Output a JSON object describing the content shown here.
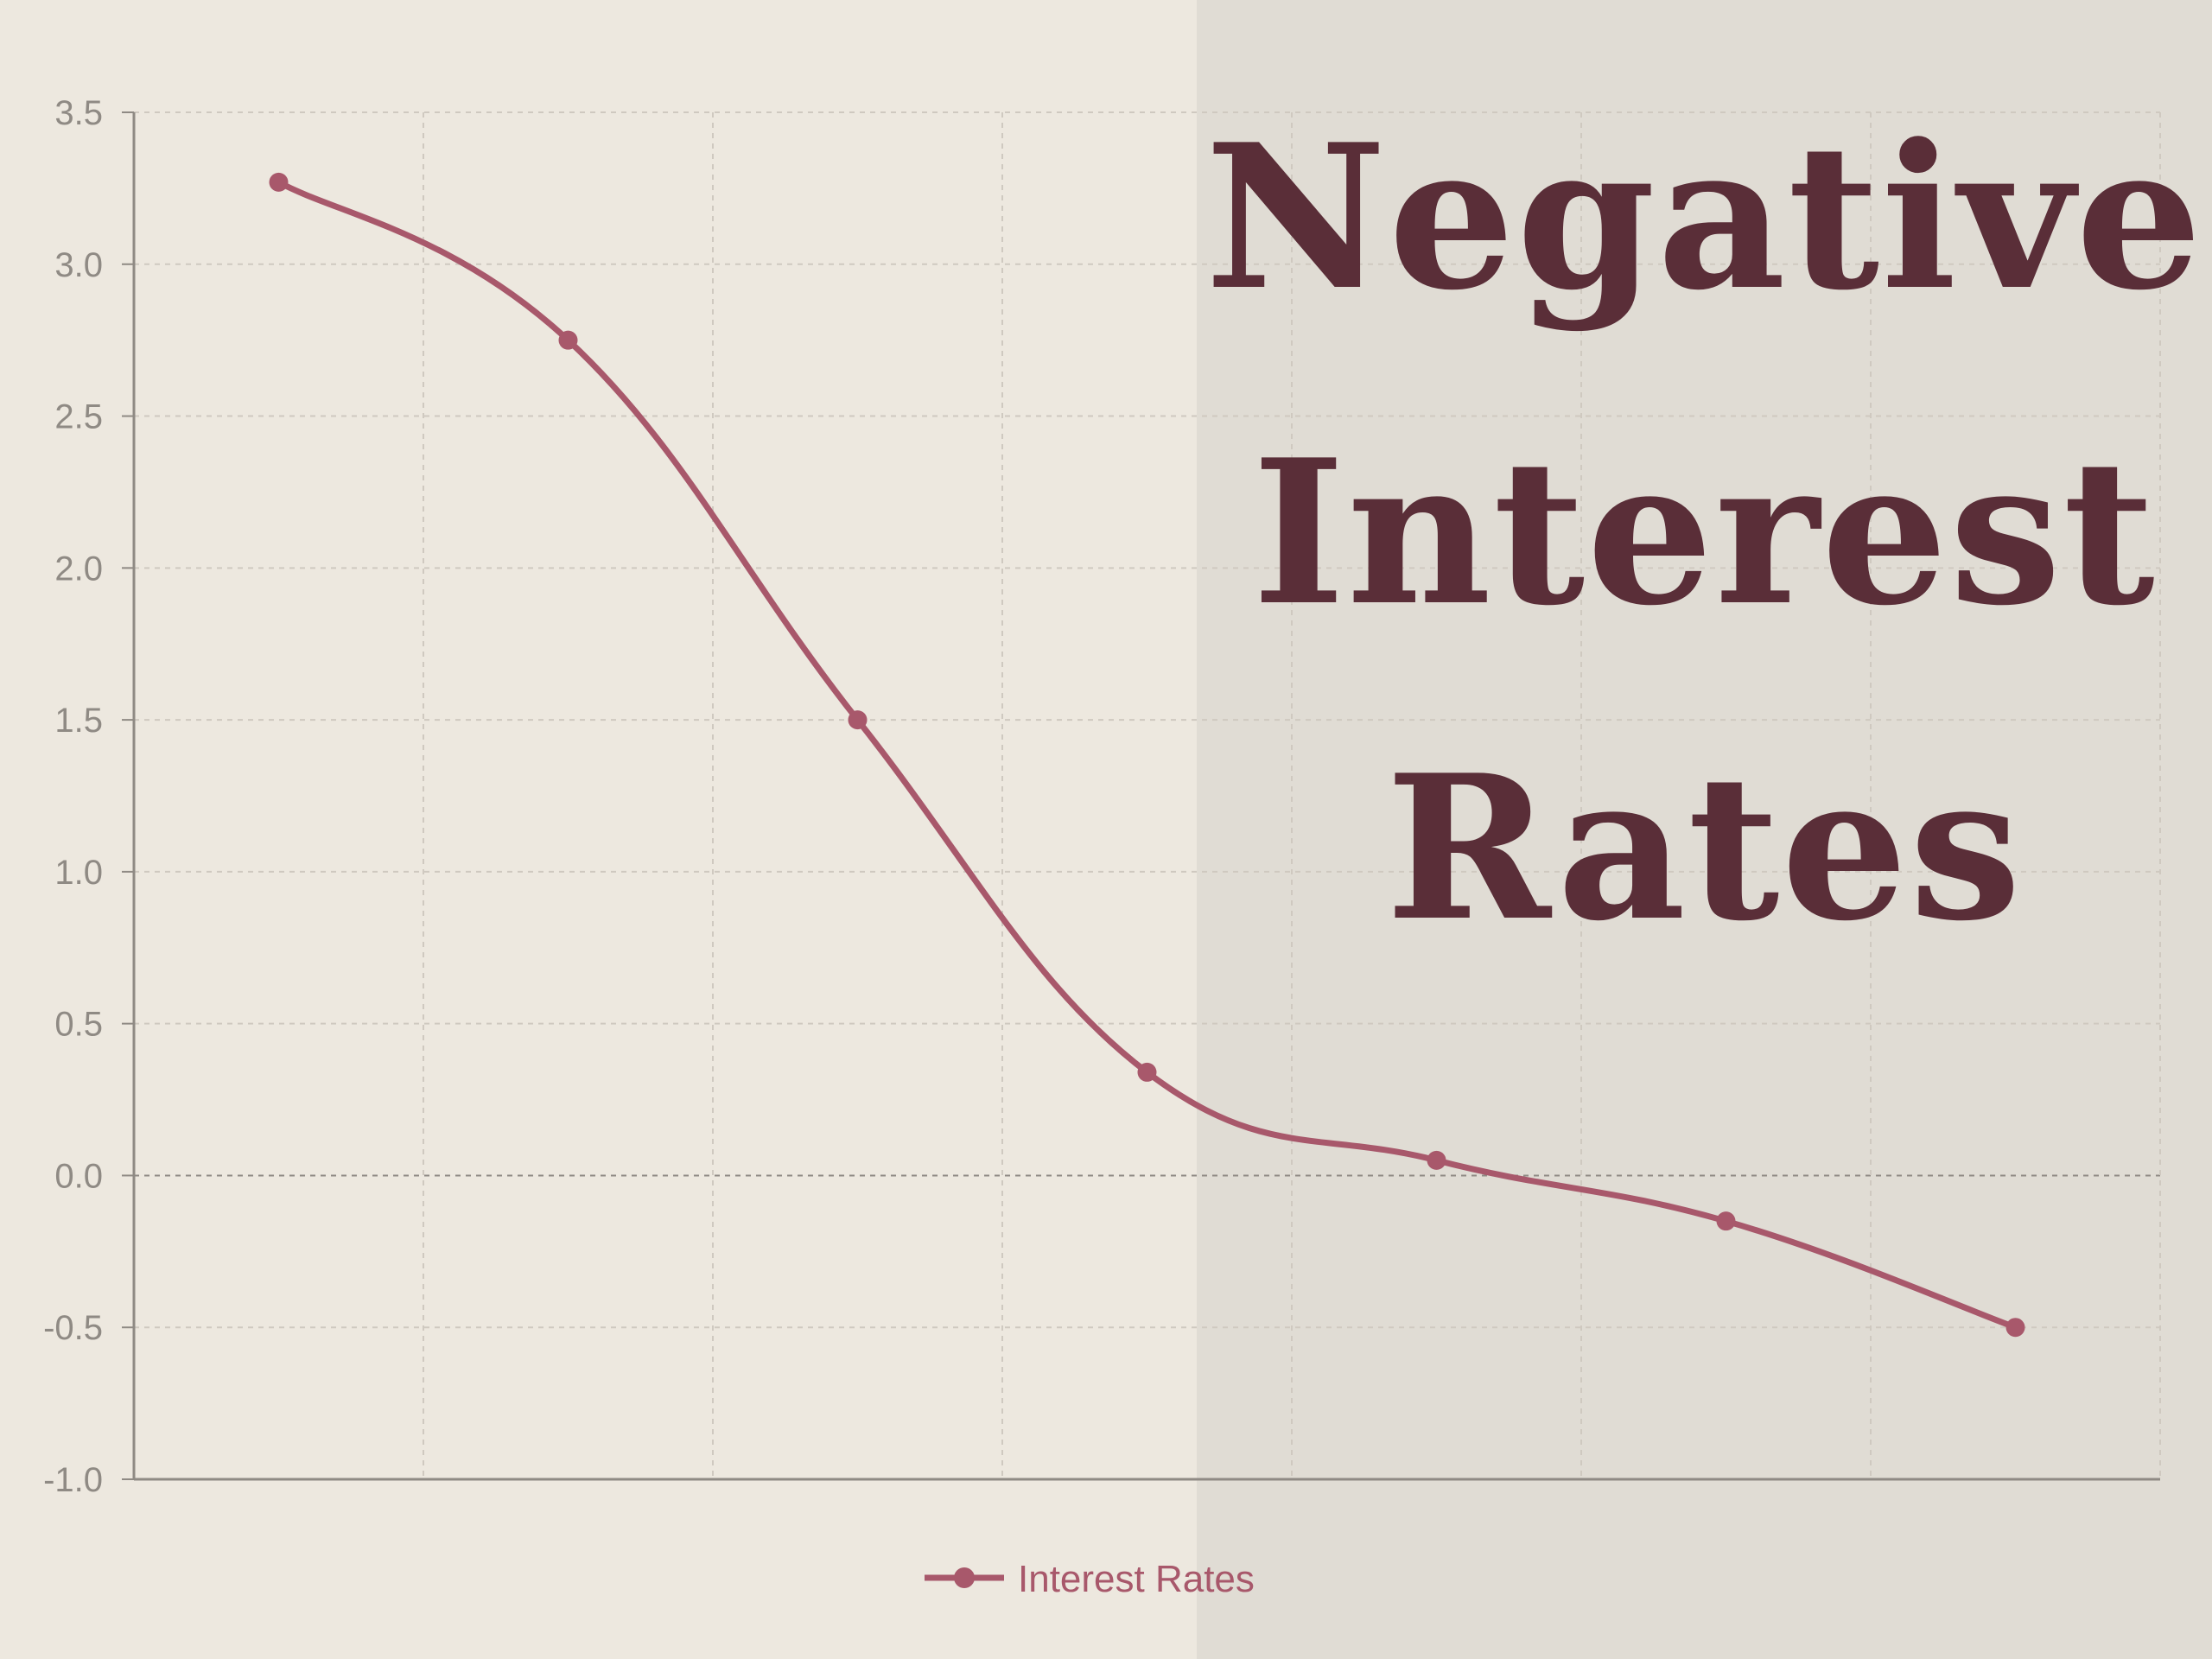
{
  "title_lines": [
    "Negative",
    "Interest",
    "Rates"
  ],
  "colors": {
    "background": "#ede8df",
    "panel": "#e0dcd4",
    "title": "#5a2e38",
    "series": "#a8586b",
    "grid": "#cfc9c0",
    "axis": "#8f8a84"
  },
  "chart_data": {
    "type": "line",
    "title": "Negative Interest Rates",
    "xlabel": "",
    "ylabel": "",
    "ylim": [
      -1.0,
      3.5
    ],
    "y_ticks": [
      "3.5",
      "3.0",
      "2.5",
      "2.0",
      "1.5",
      "1.0",
      "0.5",
      "0.0",
      "-0.5",
      "-1.0"
    ],
    "grid": true,
    "legend_position": "bottom",
    "series": [
      {
        "name": "Interest Rates",
        "values": [
          3.27,
          2.75,
          1.5,
          0.34,
          0.05,
          -0.15,
          -0.5
        ]
      }
    ]
  }
}
